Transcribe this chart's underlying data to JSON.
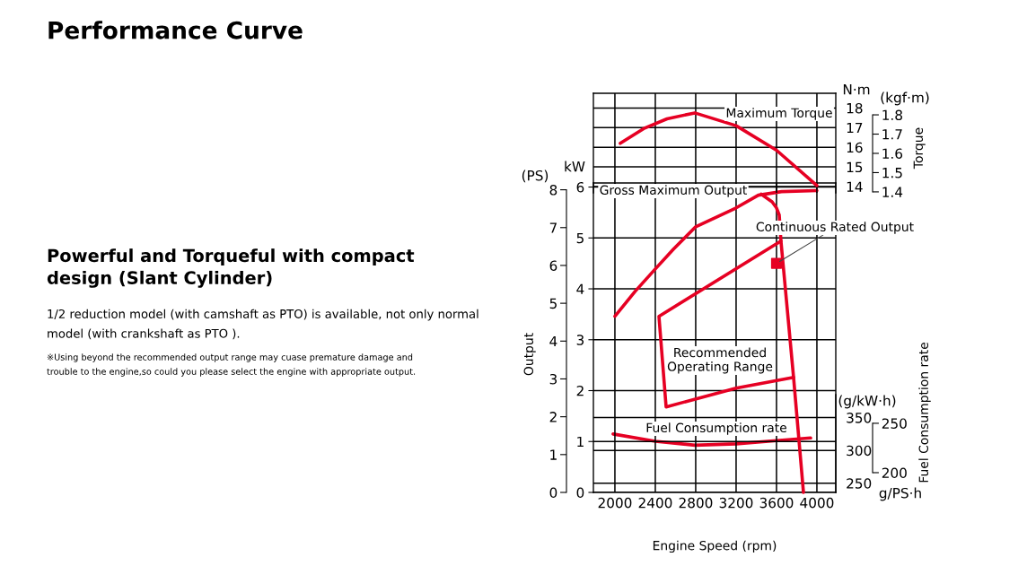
{
  "chart_data": [
    {
      "type": "other",
      "title": "Performance Curve",
      "subtitle": "Powerful and Torqueful with compact\ndesign (Slant Cylinder)",
      "annotations": [
        "1/2 reduction model (with camshaft as PTO) is available, not only normal\nmodel (with crankshaft as PTO ).",
        "※Using beyond the recommended output range may cuase premature damage and\ntrouble to the engine,so could you please select the engine with appropriate output."
      ]
    },
    {
      "type": "line",
      "ylabel": "N·m",
      "y2label": "(kgf·m)",
      "annotations": [
        "Torque"
      ],
      "marker": "none",
      "xlim": [
        1787,
        4187
      ],
      "xticks": [
        2000,
        2400,
        2800,
        3200,
        3600,
        4000
      ],
      "ylim": [
        13.68,
        18.75
      ],
      "yticks": [
        14,
        15,
        16,
        17,
        18
      ],
      "y2lim": [
        1.395,
        1.912
      ],
      "y2ticks": [
        1.4,
        1.5,
        1.6,
        1.7,
        1.8
      ],
      "grid": true,
      "tick_labels": "y",
      "line_style": "solid",
      "series": [
        {
          "name": "Maximum Torque",
          "color": "#e60023",
          "x": [
            2053,
            2284,
            2516,
            2791,
            3200,
            3600,
            4000
          ],
          "values": [
            16.2,
            16.95,
            17.45,
            17.75,
            17.1,
            15.85,
            14.05
          ]
        }
      ]
    },
    {
      "type": "line",
      "xlabel": "Engine Speed (rpm)",
      "ylabel": "kW",
      "y2label": "(PS)",
      "annotations": [
        "Output"
      ],
      "marker": "none",
      "xlim": [
        1787,
        4187
      ],
      "xticks": [
        2000,
        2400,
        2800,
        3200,
        3600,
        4000
      ],
      "ylim": [
        0,
        6.08
      ],
      "yticks": [
        0,
        1,
        2,
        3,
        4,
        5,
        6
      ],
      "y2lim": [
        0,
        8.18
      ],
      "y2ticks": [
        0,
        1,
        2,
        3,
        4,
        5,
        6,
        7,
        8
      ],
      "grid": true,
      "line_style": "solid",
      "series": [
        {
          "name": "Gross Maximum Output",
          "color": "#e60023",
          "x": [
            2000,
            2200,
            2400,
            2580,
            2800,
            3200,
            3420,
            3650,
            4000
          ],
          "values": [
            3.46,
            3.95,
            4.39,
            4.78,
            5.22,
            5.59,
            5.84,
            5.91,
            5.93
          ]
        },
        {
          "color": "#e60023",
          "x": [
            3449,
            3556,
            3600,
            3627,
            3644,
            3769,
            3867
          ],
          "values": [
            5.86,
            5.71,
            5.59,
            5.45,
            4.94,
            2.26,
            0
          ]
        },
        {
          "name": "Continuous Rated Output",
          "type": "scatter",
          "marker": "square",
          "color": "#e60023",
          "x": [
            3600
          ],
          "values": [
            4.5
          ]
        },
        {
          "name": "Recommended\nOperating Range",
          "color": "#e60023",
          "x": [
            3644,
            2436,
            2507,
            3200,
            3769
          ],
          "values": [
            4.94,
            3.46,
            1.68,
            2.05,
            2.26
          ]
        }
      ]
    },
    {
      "type": "line",
      "ylabel": "(g/kW·h)",
      "y2label": "g/PS·h",
      "annotations": [
        "Fuel Consumption rate"
      ],
      "marker": "none",
      "xlim": [
        1787,
        4187
      ],
      "ylim": [
        236,
        385
      ],
      "yticks": [
        250,
        300,
        350
      ],
      "y2lim": [
        180,
        279
      ],
      "y2ticks": [
        200,
        250
      ],
      "grid": "y",
      "tick_labels": "y",
      "line_style": "solid",
      "series": [
        {
          "name": "Fuel Consumption rate",
          "color": "#e60023",
          "x": [
            1982,
            2400,
            2791,
            3200,
            3600,
            3938
          ],
          "values": [
            325,
            314,
            308,
            310,
            315,
            319
          ]
        }
      ]
    }
  ]
}
